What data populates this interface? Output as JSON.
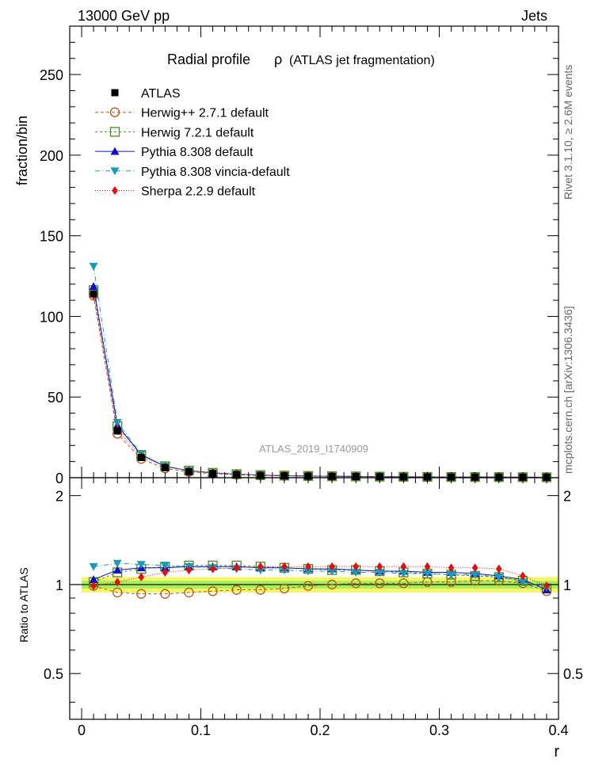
{
  "header": {
    "left_label": "13000 GeV pp",
    "right_label": "Jets"
  },
  "side_labels": {
    "rivet": "Rivet 3.1.10, ≥ 2.6M events",
    "mcplots": "mcplots.cern.ch [arXiv:1306.3436]"
  },
  "chart_data": {
    "type": "line",
    "title": "Radial profile",
    "title_symbol": "ρ",
    "title_suffix": "(ATLAS jet fragmentation)",
    "analysis_label": "ATLAS_2019_I1740909",
    "xlabel": "r",
    "ylabel_main": "fraction/bin",
    "ylabel_ratio": "Ratio to ATLAS",
    "xlim": [
      -0.01,
      0.4
    ],
    "ylim_main": [
      0,
      280
    ],
    "ylim_ratio": [
      0.35,
      2.3
    ],
    "x_ticks": [
      "0",
      "0.1",
      "0.2",
      "0.3",
      "0.4"
    ],
    "y_ticks_main": [
      "0",
      "50",
      "100",
      "150",
      "200",
      "250"
    ],
    "y_ticks_ratio": [
      "0.5",
      "1",
      "2"
    ],
    "legend_position": "top-left",
    "x": [
      0.01,
      0.03,
      0.05,
      0.07,
      0.09,
      0.11,
      0.13,
      0.15,
      0.17,
      0.19,
      0.21,
      0.23,
      0.25,
      0.27,
      0.29,
      0.31,
      0.33,
      0.35,
      0.37,
      0.39
    ],
    "data": {
      "name": "ATLAS",
      "values": [
        114,
        29,
        12.5,
        6.2,
        3.8,
        2.6,
        1.9,
        1.4,
        1.15,
        0.95,
        0.8,
        0.7,
        0.6,
        0.52,
        0.46,
        0.41,
        0.37,
        0.33,
        0.3,
        0.27
      ],
      "band_outer": 0.06,
      "band_inner": 0.03
    },
    "series": [
      {
        "name": "Herwig++ 2.7.1 default",
        "color": "#b5581a",
        "marker": "circle-open",
        "dash": "4,3",
        "ratio": [
          0.99,
          0.94,
          0.93,
          0.93,
          0.94,
          0.95,
          0.96,
          0.96,
          0.97,
          0.99,
          1.0,
          1.01,
          1.01,
          1.01,
          1.02,
          1.02,
          1.03,
          1.03,
          1.01,
          0.95
        ]
      },
      {
        "name": "Herwig 7.2.1 default",
        "color": "#4a8a1c",
        "marker": "square-open",
        "dash": "3,3",
        "ratio": [
          1.02,
          1.1,
          1.13,
          1.15,
          1.16,
          1.16,
          1.16,
          1.15,
          1.14,
          1.13,
          1.12,
          1.12,
          1.11,
          1.1,
          1.09,
          1.08,
          1.07,
          1.06,
          1.03,
          0.97
        ]
      },
      {
        "name": "Pythia 8.308 default",
        "color": "#1010c8",
        "marker": "triangle-up",
        "dash": "",
        "ratio": [
          1.04,
          1.12,
          1.14,
          1.14,
          1.15,
          1.15,
          1.15,
          1.14,
          1.14,
          1.13,
          1.13,
          1.12,
          1.11,
          1.11,
          1.1,
          1.1,
          1.09,
          1.07,
          1.04,
          0.96
        ]
      },
      {
        "name": "Pythia 8.308 vincia-default",
        "color": "#1a9ab8",
        "marker": "triangle-down",
        "dash": "6,3,1,3",
        "ratio": [
          1.15,
          1.18,
          1.17,
          1.16,
          1.15,
          1.14,
          1.13,
          1.12,
          1.12,
          1.11,
          1.11,
          1.1,
          1.1,
          1.09,
          1.09,
          1.08,
          1.08,
          1.06,
          1.02,
          0.98
        ]
      },
      {
        "name": "Sherpa 2.2.9 default",
        "color": "#e01010",
        "marker": "diamond",
        "dash": "1,2",
        "ratio": [
          0.99,
          1.02,
          1.06,
          1.1,
          1.12,
          1.13,
          1.14,
          1.15,
          1.15,
          1.15,
          1.15,
          1.15,
          1.15,
          1.15,
          1.15,
          1.14,
          1.14,
          1.13,
          1.07,
          0.99
        ]
      }
    ]
  }
}
